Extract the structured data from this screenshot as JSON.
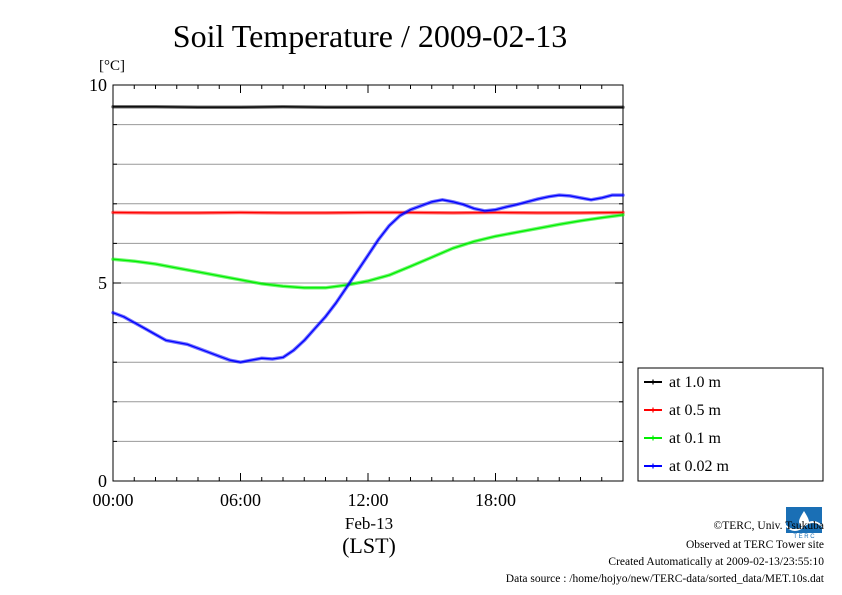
{
  "chart_data": {
    "type": "line",
    "title": "Soil Temperature / 2009-02-13",
    "yunit": "[°C]",
    "ylim": [
      0,
      10
    ],
    "xlim": [
      0,
      24
    ],
    "yticks": [
      {
        "value": 0,
        "label": "0"
      },
      {
        "value": 5,
        "label": "5"
      },
      {
        "value": 10,
        "label": "10"
      }
    ],
    "xticks": [
      {
        "value": 0,
        "label": "00:00"
      },
      {
        "value": 6,
        "label": "06:00"
      },
      {
        "value": 12,
        "label": "12:00"
      },
      {
        "value": 18,
        "label": "18:00"
      }
    ],
    "xdate_label": "Feb-13",
    "xlabel": "(LST)",
    "grid": true,
    "legend_position": "right",
    "series": [
      {
        "name": "at 1.0 m",
        "color": "#000000",
        "x": [
          0,
          2,
          4,
          6,
          8,
          10,
          12,
          14,
          16,
          18,
          20,
          22,
          24
        ],
        "y": [
          9.45,
          9.45,
          9.44,
          9.44,
          9.45,
          9.44,
          9.44,
          9.44,
          9.44,
          9.44,
          9.44,
          9.44,
          9.44
        ]
      },
      {
        "name": "at 0.5 m",
        "color": "#ff0000",
        "x": [
          0,
          2,
          4,
          6,
          8,
          10,
          12,
          14,
          16,
          18,
          20,
          22,
          24
        ],
        "y": [
          6.78,
          6.77,
          6.77,
          6.78,
          6.77,
          6.77,
          6.78,
          6.78,
          6.77,
          6.78,
          6.77,
          6.77,
          6.78
        ]
      },
      {
        "name": "at 0.1 m",
        "color": "#00ee00",
        "x": [
          0,
          1,
          2,
          3,
          4,
          5,
          6,
          7,
          8,
          9,
          10,
          11,
          12,
          13,
          14,
          15,
          16,
          17,
          18,
          19,
          20,
          21,
          22,
          23,
          24
        ],
        "y": [
          5.6,
          5.55,
          5.48,
          5.38,
          5.28,
          5.18,
          5.08,
          4.98,
          4.92,
          4.88,
          4.88,
          4.95,
          5.05,
          5.2,
          5.42,
          5.65,
          5.88,
          6.05,
          6.18,
          6.28,
          6.38,
          6.48,
          6.57,
          6.65,
          6.72
        ]
      },
      {
        "name": "at 0.02 m",
        "color": "#0000ff",
        "x": [
          0,
          0.5,
          1,
          1.5,
          2,
          2.5,
          3,
          3.5,
          4,
          4.5,
          5,
          5.5,
          6,
          6.5,
          7,
          7.5,
          8,
          8.5,
          9,
          9.5,
          10,
          10.5,
          11,
          11.5,
          12,
          12.5,
          13,
          13.5,
          14,
          14.5,
          15,
          15.5,
          16,
          16.5,
          17,
          17.5,
          18,
          18.5,
          19,
          19.5,
          20,
          20.5,
          21,
          21.5,
          22,
          22.5,
          23,
          23.5,
          24
        ],
        "y": [
          4.25,
          4.15,
          4.0,
          3.85,
          3.7,
          3.55,
          3.5,
          3.45,
          3.35,
          3.25,
          3.15,
          3.05,
          3.0,
          3.05,
          3.1,
          3.08,
          3.12,
          3.3,
          3.55,
          3.85,
          4.15,
          4.5,
          4.9,
          5.3,
          5.7,
          6.1,
          6.45,
          6.7,
          6.85,
          6.95,
          7.05,
          7.1,
          7.05,
          6.98,
          6.88,
          6.82,
          6.85,
          6.92,
          6.98,
          7.05,
          7.12,
          7.18,
          7.22,
          7.2,
          7.15,
          7.1,
          7.15,
          7.22,
          7.22
        ]
      }
    ]
  },
  "credits": {
    "copyright": "©TERC, Univ. Tsukuba",
    "observed": "Observed at TERC Tower site",
    "created": "Created Automatically at 2009-02-13/23:55:10",
    "source": "Data source : /home/hojyo/new/TERC-data/sorted_data/MET.10s.dat"
  }
}
